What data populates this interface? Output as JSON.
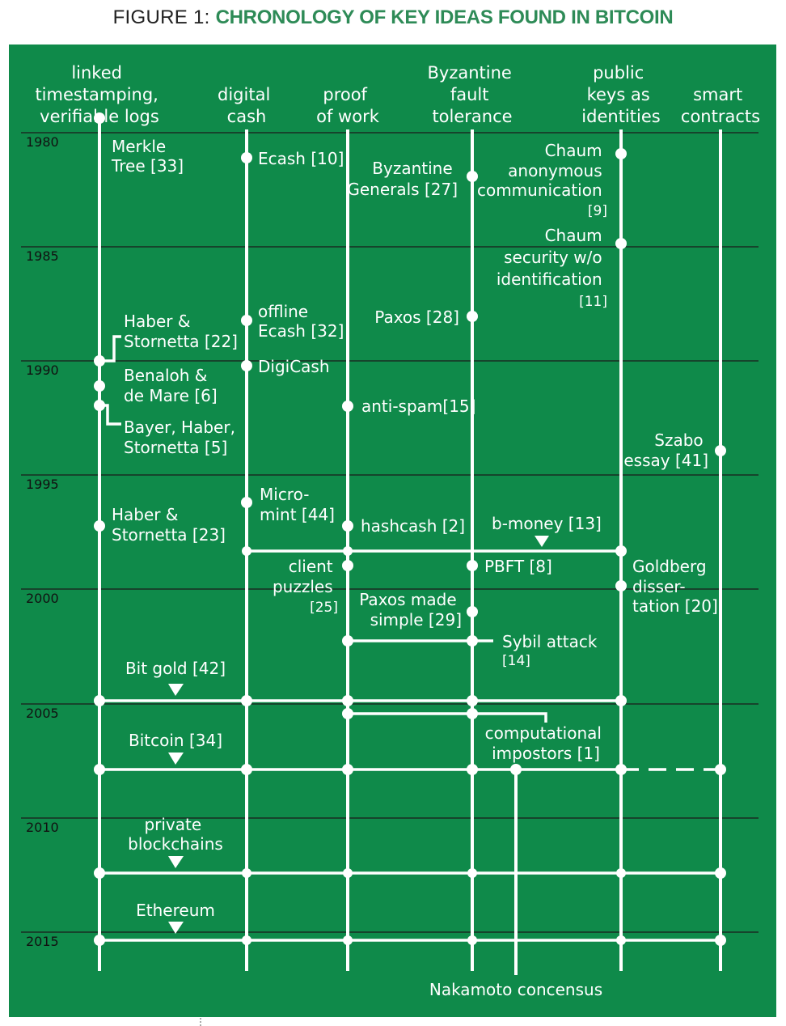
{
  "figure": {
    "label": "FIGURE 1:",
    "title": "CHRONOLOGY OF KEY IDEAS FOUND IN BITCOIN"
  },
  "colors": {
    "background": "#0f8a4a",
    "foreground": "#ffffff",
    "grid": "#1a1a1a",
    "title_accent": "#2e8b57"
  },
  "columns": [
    {
      "id": "ts",
      "lines": [
        "linked",
        "timestamping,",
        "verifiable logs"
      ]
    },
    {
      "id": "cash",
      "lines": [
        "digital",
        "cash"
      ]
    },
    {
      "id": "pow",
      "lines": [
        "proof",
        "of work"
      ]
    },
    {
      "id": "bft",
      "lines": [
        "Byzantine",
        "fault",
        "tolerance"
      ]
    },
    {
      "id": "pk",
      "lines": [
        "public",
        "keys as",
        "identities"
      ]
    },
    {
      "id": "sc",
      "lines": [
        "smart",
        "contracts"
      ]
    }
  ],
  "years": [
    "1980",
    "1985",
    "1990",
    "1995",
    "2000",
    "2005",
    "2010",
    "2015"
  ],
  "events": [
    {
      "id": "merkle",
      "lines": [
        "Merkle",
        "Tree [33]"
      ]
    },
    {
      "id": "ecash",
      "lines": [
        "Ecash [10]"
      ]
    },
    {
      "id": "byz-generals",
      "lines": [
        "Byzantine",
        "Generals [27]"
      ]
    },
    {
      "id": "chaum-anon",
      "lines": [
        "Chaum",
        "anonymous",
        "communication",
        "[9]"
      ]
    },
    {
      "id": "chaum-sec",
      "lines": [
        "Chaum",
        "security w/o",
        "identification",
        "[11]"
      ]
    },
    {
      "id": "haber22",
      "lines": [
        "Haber &",
        "Stornetta [22]"
      ]
    },
    {
      "id": "offline-ecash",
      "lines": [
        "offline",
        "Ecash [32]"
      ]
    },
    {
      "id": "paxos",
      "lines": [
        "Paxos [28]"
      ]
    },
    {
      "id": "digicash",
      "lines": [
        "DigiCash"
      ]
    },
    {
      "id": "benaloh",
      "lines": [
        "Benaloh &",
        "de Mare [6]"
      ]
    },
    {
      "id": "antispam",
      "lines": [
        "anti-spam[15]"
      ]
    },
    {
      "id": "bayer",
      "lines": [
        "Bayer, Haber,",
        "Stornetta [5]"
      ]
    },
    {
      "id": "szabo",
      "lines": [
        "Szabo",
        "essay [41]"
      ]
    },
    {
      "id": "micromint",
      "lines": [
        "Micro-",
        "mint [44]"
      ]
    },
    {
      "id": "haber23",
      "lines": [
        "Haber &",
        "Stornetta [23]"
      ]
    },
    {
      "id": "hashcash",
      "lines": [
        "hashcash [2]"
      ]
    },
    {
      "id": "bmoney",
      "lines": [
        "b-money [13]"
      ]
    },
    {
      "id": "client-puzzles",
      "lines": [
        "client",
        "puzzles",
        "[25]"
      ]
    },
    {
      "id": "pbft",
      "lines": [
        "PBFT [8]"
      ]
    },
    {
      "id": "goldberg",
      "lines": [
        "Goldberg",
        "disser-",
        "tation [20]"
      ]
    },
    {
      "id": "paxos-simple",
      "lines": [
        "Paxos made",
        "simple [29]"
      ]
    },
    {
      "id": "sybil",
      "lines": [
        "Sybil attack",
        "[14]"
      ]
    },
    {
      "id": "bitgold",
      "lines": [
        "Bit gold [42]"
      ]
    },
    {
      "id": "comp-impostors",
      "lines": [
        "computational",
        "impostors [1]"
      ]
    },
    {
      "id": "bitcoin",
      "lines": [
        "Bitcoin [34]"
      ]
    },
    {
      "id": "private-chains",
      "lines": [
        "private",
        "blockchains"
      ]
    },
    {
      "id": "ethereum",
      "lines": [
        "Ethereum"
      ]
    },
    {
      "id": "nakamoto",
      "lines": [
        "Nakamoto concensus"
      ]
    }
  ]
}
